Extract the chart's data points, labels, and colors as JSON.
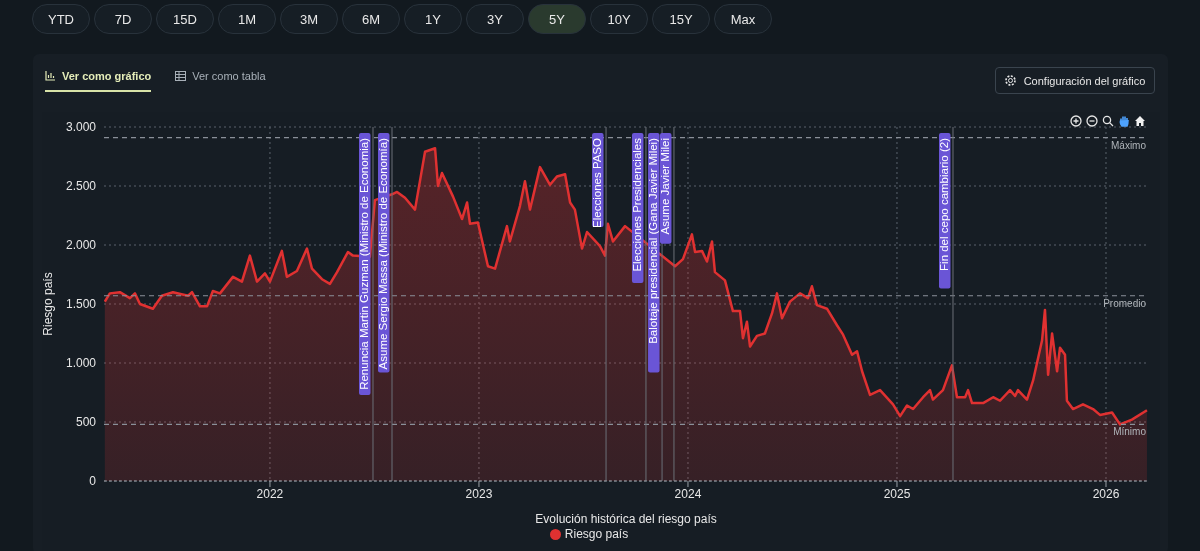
{
  "chart_data": {
    "type": "area",
    "xlabel": "Evolución histórica del riesgo país",
    "ylabel": "Riesgo país",
    "annotations": [
      "YTD",
      "7D",
      "15D",
      "1M",
      "3M",
      "6M",
      "1Y",
      "3Y",
      "5Y",
      "10Y",
      "15Y",
      "Max",
      "Ver como gráfico",
      "Ver como tabla",
      "Configuración del gráfico"
    ],
    "x": [
      2021.21,
      2021.234,
      2021.282,
      2021.33,
      2021.354,
      2021.378,
      2021.44,
      2021.483,
      2021.536,
      2021.608,
      2021.627,
      2021.665,
      2021.699,
      2021.727,
      2021.761,
      2021.823,
      2021.866,
      2021.904,
      2021.938,
      2021.976,
      2022.0,
      2022.057,
      2022.081,
      2022.129,
      2022.177,
      2022.201,
      2022.249,
      2022.287,
      2022.321,
      2022.373,
      2022.397,
      2022.44,
      2022.478,
      2022.502,
      2022.584,
      2022.608,
      2022.646,
      2022.694,
      2022.742,
      2022.79,
      2022.804,
      2022.823,
      2022.876,
      2022.919,
      2022.943,
      2022.957,
      2022.995,
      2023.043,
      2023.077,
      2023.134,
      2023.148,
      2023.196,
      2023.22,
      2023.244,
      2023.292,
      2023.34,
      2023.373,
      2023.412,
      2023.436,
      2023.459,
      2023.493,
      2023.517,
      2023.579,
      2023.603,
      2023.617,
      2023.641,
      2023.699,
      2023.771,
      2023.828,
      2023.89,
      2023.938,
      2023.976,
      2024.019,
      2024.034,
      2024.067,
      2024.091,
      2024.115,
      2024.129,
      2024.177,
      2024.215,
      2024.249,
      2024.263,
      2024.282,
      2024.297,
      2024.33,
      2024.368,
      2024.402,
      2024.426,
      2024.45,
      2024.488,
      2024.536,
      2024.574,
      2024.593,
      2024.617,
      2024.665,
      2024.713,
      2024.742,
      2024.785,
      2024.809,
      2024.833,
      2024.871,
      2024.919,
      2024.981,
      2025.015,
      2025.048,
      2025.077,
      2025.125,
      2025.158,
      2025.172,
      2025.22,
      2025.263,
      2025.287,
      2025.326,
      2025.34,
      2025.359,
      2025.412,
      2025.46,
      2025.493,
      2025.541,
      2025.565,
      2025.579,
      2025.622,
      2025.651,
      2025.675,
      2025.694,
      2025.708,
      2025.723,
      2025.742,
      2025.766,
      2025.78,
      2025.804,
      2025.813,
      2025.842,
      2025.89,
      2025.938,
      2025.971,
      2026.029,
      2026.067,
      2026.124,
      2026.196
    ],
    "series": [
      {
        "name": "Riesgo país",
        "color": "#e03131",
        "values": [
          1520,
          1590,
          1600,
          1550,
          1590,
          1500,
          1460,
          1570,
          1600,
          1570,
          1600,
          1480,
          1480,
          1610,
          1590,
          1730,
          1690,
          1910,
          1690,
          1760,
          1690,
          1950,
          1730,
          1780,
          1970,
          1800,
          1710,
          1670,
          1770,
          1940,
          1910,
          null,
          1900,
          2380,
          2430,
          2450,
          2400,
          2300,
          2790,
          2820,
          2500,
          2610,
          2410,
          2220,
          2360,
          2180,
          2190,
          1820,
          1800,
          2160,
          2030,
          2330,
          2540,
          2300,
          2660,
          2510,
          2580,
          2600,
          2360,
          2300,
          1970,
          2110,
          1990,
          1910,
          2180,
          2030,
          2160,
          null,
          null,
          null,
          1820,
          1880,
          2090,
          1940,
          1950,
          1860,
          2030,
          1770,
          1700,
          1440,
          1440,
          1210,
          1350,
          1140,
          1230,
          1250,
          1420,
          1590,
          1380,
          1520,
          1590,
          1550,
          1650,
          1490,
          1460,
          1320,
          1240,
          1070,
          1100,
          930,
          730,
          770,
          650,
          550,
          640,
          610,
          710,
          770,
          690,
          770,
          980,
          710,
          710,
          770,
          660,
          660,
          710,
          680,
          770,
          720,
          770,
          690,
          850,
          1040,
          1190,
          1450,
          900,
          1250,
          930,
          1130,
          1070,
          680,
          610,
          650,
          610,
          560,
          580,
          480,
          520,
          600
        ]
      }
    ],
    "xlim": [
      2021.206,
      2026.201
    ],
    "xticks": [
      2022,
      2023,
      2024,
      2025,
      2026
    ],
    "ylim": [
      0,
      3000
    ],
    "yticks": [
      0,
      500,
      {
        "value": 1000,
        "label": "1.000"
      },
      {
        "value": 1500,
        "label": "1.500"
      },
      {
        "value": 2000,
        "label": "2.000"
      },
      {
        "value": 2500,
        "label": "2.500"
      },
      {
        "value": 3000,
        "label": "3.000"
      }
    ],
    "ref_lines": [
      {
        "axis": "y",
        "value": 2910,
        "label": "Máximo",
        "color": "#8a9099",
        "line_style": "dashed"
      },
      {
        "axis": "y",
        "value": 1570,
        "label": "Promedio",
        "color": "#8a9099",
        "line_style": "dashed"
      },
      {
        "axis": "y",
        "value": 480,
        "label": "Mínimo",
        "color": "#8a9099",
        "line_style": "dashed"
      },
      {
        "axis": "x",
        "value": 2022.493,
        "label": "Renuncia Martin Guzman (Ministro de Economia)",
        "color": "#6b7078"
      },
      {
        "axis": "x",
        "value": 2022.584,
        "label": "Asume Sergio Massa (Ministro de Economía)",
        "color": "#6b7078"
      },
      {
        "axis": "x",
        "value": 2023.608,
        "label": "Elecciones PASO",
        "color": "#6b7078"
      },
      {
        "axis": "x",
        "value": 2023.799,
        "label": "Elecciones Presidenciales",
        "color": "#6b7078"
      },
      {
        "axis": "x",
        "value": 2023.876,
        "label": "Balotaje presidencial (Gana Javier Milei)",
        "color": "#6b7078"
      },
      {
        "axis": "x",
        "value": 2023.933,
        "label": "Asume Javier Milei",
        "color": "#6b7078"
      },
      {
        "axis": "x",
        "value": 2025.268,
        "label": "Fin del cepo cambiario (2)",
        "color": "#6b7078"
      }
    ],
    "grid": true,
    "legend": "bottom"
  }
}
